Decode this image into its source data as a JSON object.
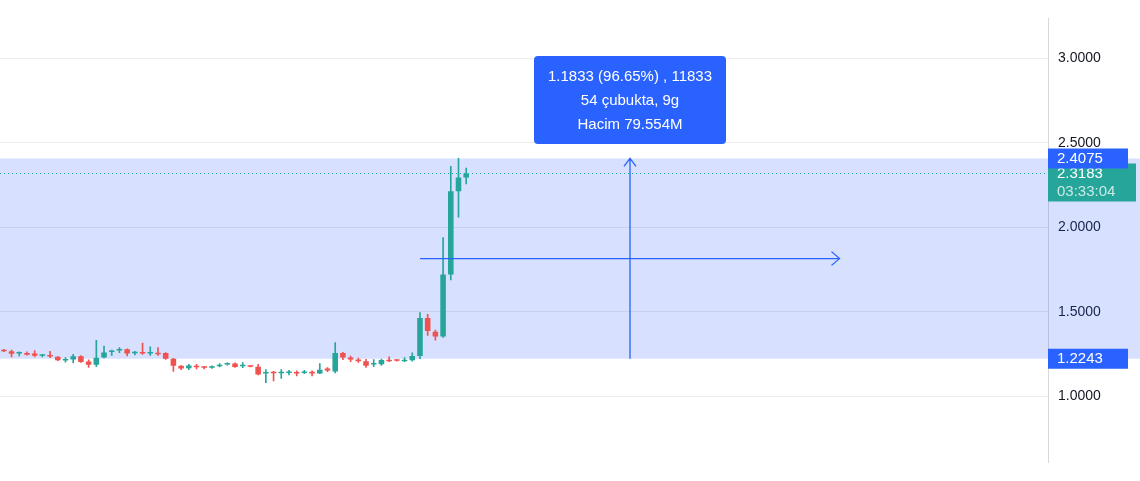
{
  "chart_data": {
    "type": "candlestick",
    "categories": [
      null,
      null,
      null,
      null,
      null,
      null,
      null,
      null,
      null,
      null,
      null,
      null,
      null,
      null,
      null,
      null,
      null,
      null,
      null,
      null,
      null,
      null,
      null,
      null,
      null,
      null,
      null,
      null,
      null,
      null,
      null,
      null,
      null,
      null,
      null,
      null,
      null,
      null,
      null,
      null,
      null,
      null,
      null,
      null,
      null,
      null,
      null,
      null,
      null,
      null,
      null,
      null,
      null,
      null,
      null,
      null,
      null,
      null,
      null,
      null,
      null,
      null,
      null,
      null,
      null,
      null,
      null,
      null,
      null,
      null,
      null,
      null,
      null,
      null,
      null,
      null,
      null,
      null,
      null,
      null,
      null,
      null,
      null,
      null,
      null,
      null,
      null,
      null,
      null,
      null,
      null,
      null,
      null,
      null,
      null,
      null,
      null,
      null,
      null,
      null,
      null,
      null,
      null,
      null,
      null,
      null,
      null,
      null,
      null,
      null,
      null,
      null,
      null,
      null,
      null,
      null,
      null,
      null,
      null,
      null,
      null,
      null,
      null,
      null,
      null,
      null,
      null,
      null,
      null,
      null,
      null,
      null,
      null,
      null,
      null,
      null
    ],
    "ohlc": [
      [
        1.275,
        1.28,
        1.265,
        1.268
      ],
      [
        1.268,
        1.275,
        1.235,
        1.253
      ],
      [
        1.255,
        1.265,
        1.24,
        1.257
      ],
      [
        1.257,
        1.265,
        1.245,
        1.248
      ],
      [
        1.255,
        1.272,
        1.235,
        1.242
      ],
      [
        1.241,
        1.248,
        1.235,
        1.243
      ],
      [
        1.243,
        1.268,
        1.23,
        1.237
      ],
      [
        1.235,
        1.237,
        1.212,
        1.215
      ],
      [
        1.213,
        1.231,
        1.204,
        1.222
      ],
      [
        1.22,
        1.25,
        1.199,
        1.239
      ],
      [
        1.239,
        1.242,
        1.202,
        1.204
      ],
      [
        1.208,
        1.217,
        1.173,
        1.188
      ],
      [
        1.188,
        1.332,
        1.177,
        1.23
      ],
      [
        1.231,
        1.299,
        1.228,
        1.261
      ],
      [
        1.264,
        1.275,
        1.244,
        1.273
      ],
      [
        1.273,
        1.29,
        1.259,
        1.282
      ],
      [
        1.28,
        1.282,
        1.24,
        1.255
      ],
      [
        1.256,
        1.268,
        1.246,
        1.258
      ],
      [
        1.256,
        1.317,
        1.25,
        1.254
      ],
      [
        1.254,
        1.294,
        1.243,
        1.256
      ],
      [
        1.257,
        1.29,
        1.243,
        1.251
      ],
      [
        1.257,
        1.26,
        1.22,
        1.224
      ],
      [
        1.224,
        1.226,
        1.149,
        1.182
      ],
      [
        1.182,
        1.184,
        1.159,
        1.166
      ],
      [
        1.168,
        1.191,
        1.159,
        1.184
      ],
      [
        1.182,
        1.19,
        1.164,
        1.173
      ],
      [
        1.173,
        1.177,
        1.164,
        1.17
      ],
      [
        1.171,
        1.182,
        1.166,
        1.177
      ],
      [
        1.179,
        1.195,
        1.175,
        1.188
      ],
      [
        1.19,
        1.199,
        1.186,
        1.195
      ],
      [
        1.195,
        1.199,
        1.173,
        1.175
      ],
      [
        1.179,
        1.201,
        1.171,
        1.188
      ],
      [
        1.182,
        1.184,
        1.175,
        1.177
      ],
      [
        1.177,
        1.19,
        1.128,
        1.131
      ],
      [
        1.137,
        1.159,
        1.082,
        1.142
      ],
      [
        1.144,
        1.149,
        1.093,
        1.138
      ],
      [
        1.138,
        1.159,
        1.108,
        1.144
      ],
      [
        1.14,
        1.155,
        1.128,
        1.144
      ],
      [
        1.144,
        1.153,
        1.122,
        1.137
      ],
      [
        1.14,
        1.155,
        1.135,
        1.147
      ],
      [
        1.147,
        1.153,
        1.122,
        1.137
      ],
      [
        1.137,
        1.195,
        1.135,
        1.159
      ],
      [
        1.166,
        1.171,
        1.147,
        1.155
      ],
      [
        1.149,
        1.319,
        1.14,
        1.257
      ],
      [
        1.257,
        1.262,
        1.219,
        1.231
      ],
      [
        1.231,
        1.24,
        1.206,
        1.219
      ],
      [
        1.22,
        1.228,
        1.202,
        1.209
      ],
      [
        1.209,
        1.22,
        1.173,
        1.182
      ],
      [
        1.19,
        1.219,
        1.177,
        1.199
      ],
      [
        1.191,
        1.222,
        1.184,
        1.217
      ],
      [
        1.217,
        1.235,
        1.206,
        1.209
      ],
      [
        1.215,
        1.217,
        1.21,
        1.212
      ],
      [
        1.209,
        1.231,
        1.206,
        1.217
      ],
      [
        1.215,
        1.259,
        1.209,
        1.24
      ],
      [
        1.24,
        1.497,
        1.2243,
        1.465
      ],
      [
        1.465,
        1.486,
        1.361,
        1.388
      ],
      [
        1.383,
        1.393,
        1.333,
        1.355
      ],
      [
        1.355,
        1.94,
        1.35,
        1.721
      ],
      [
        1.721,
        2.361,
        1.689,
        2.213
      ],
      [
        2.213,
        2.4075,
        2.06,
        2.295
      ],
      [
        2.295,
        2.35,
        2.257,
        2.3183
      ],
      null,
      null,
      null,
      null,
      null,
      null,
      null,
      null,
      null,
      null,
      null,
      null,
      null,
      null,
      null,
      null,
      null,
      null,
      null,
      null,
      null,
      null,
      null,
      null,
      null,
      null,
      null,
      null,
      null,
      null,
      null,
      null,
      null,
      null,
      null,
      null,
      null,
      null,
      null,
      null,
      null,
      null,
      null,
      null,
      null,
      null,
      null,
      null,
      null,
      null,
      null,
      null,
      null,
      null,
      null,
      null,
      null,
      null,
      null,
      null,
      null,
      null,
      null,
      null,
      null,
      null,
      null,
      null,
      null,
      null,
      null,
      null,
      null,
      null,
      null
    ],
    "colors": [
      "#ef5350",
      "#ef5350",
      "#26a69a",
      "#ef5350",
      "#ef5350",
      "#26a69a",
      "#ef5350",
      "#ef5350",
      "#26a69a",
      "#26a69a",
      "#ef5350",
      "#ef5350",
      "#26a69a",
      "#26a69a",
      "#26a69a",
      "#26a69a",
      "#ef5350",
      "#26a69a",
      "#ef5350",
      "#26a69a",
      "#ef5350",
      "#ef5350",
      "#ef5350",
      "#ef5350",
      "#26a69a",
      "#ef5350",
      "#ef5350",
      "#26a69a",
      "#26a69a",
      "#26a69a",
      "#ef5350",
      "#26a69a",
      "#ef5350",
      "#ef5350",
      "#26a69a",
      "#ef5350",
      "#26a69a",
      "#26a69a",
      "#ef5350",
      "#26a69a",
      "#ef5350",
      "#26a69a",
      "#ef5350",
      "#26a69a",
      "#ef5350",
      "#ef5350",
      "#ef5350",
      "#ef5350",
      "#26a69a",
      "#26a69a",
      "#ef5350",
      "#ef5350",
      "#26a69a",
      "#26a69a",
      "#26a69a",
      "#ef5350",
      "#ef5350",
      "#26a69a",
      "#26a69a",
      "#26a69a",
      "#26a69a",
      null,
      null,
      null,
      null,
      null,
      null,
      null,
      null,
      null,
      null,
      null,
      null,
      null,
      null,
      null,
      null,
      null,
      null,
      null,
      null,
      null,
      null,
      null,
      null,
      null,
      null,
      null,
      null,
      null,
      null,
      null,
      null,
      null,
      null,
      null,
      null,
      null,
      null,
      null,
      null,
      null,
      null,
      null,
      null,
      null,
      null,
      null,
      null,
      null,
      null,
      null,
      null,
      null,
      null,
      null,
      null,
      null,
      null,
      null,
      null,
      null,
      null,
      null,
      null,
      null,
      null,
      null,
      null,
      null,
      null,
      null,
      null,
      null,
      null,
      null
    ],
    "ylim": [
      0.61,
      3.235
    ],
    "yticks": [
      {
        "value": 1,
        "label": "1.0000"
      },
      {
        "value": 1.5,
        "label": "1.5000"
      },
      {
        "value": 2,
        "label": "2.0000"
      },
      {
        "value": 2.5,
        "label": "2.5000"
      },
      {
        "value": 3,
        "label": "3.0000"
      }
    ],
    "tick_labels": "y",
    "grid": "y",
    "ref_lines": [
      {
        "axis": "y",
        "value": 2.3183,
        "label": "2.3183\n03:33:04",
        "color": "#26a69a",
        "line_style": "dotted"
      }
    ],
    "bands": [
      {
        "axis": "y",
        "from": 1.2243,
        "to": 2.4075,
        "color": "#2962ff"
      }
    ],
    "annotations": [
      "1.1833 (96.65%) , 11833",
      "54 çubukta, 9g",
      "Hacim 79.554M",
      {
        "text": "2.4075",
        "y": 2.4075
      },
      {
        "text": "1.2243",
        "y": 1.2243
      }
    ]
  }
}
